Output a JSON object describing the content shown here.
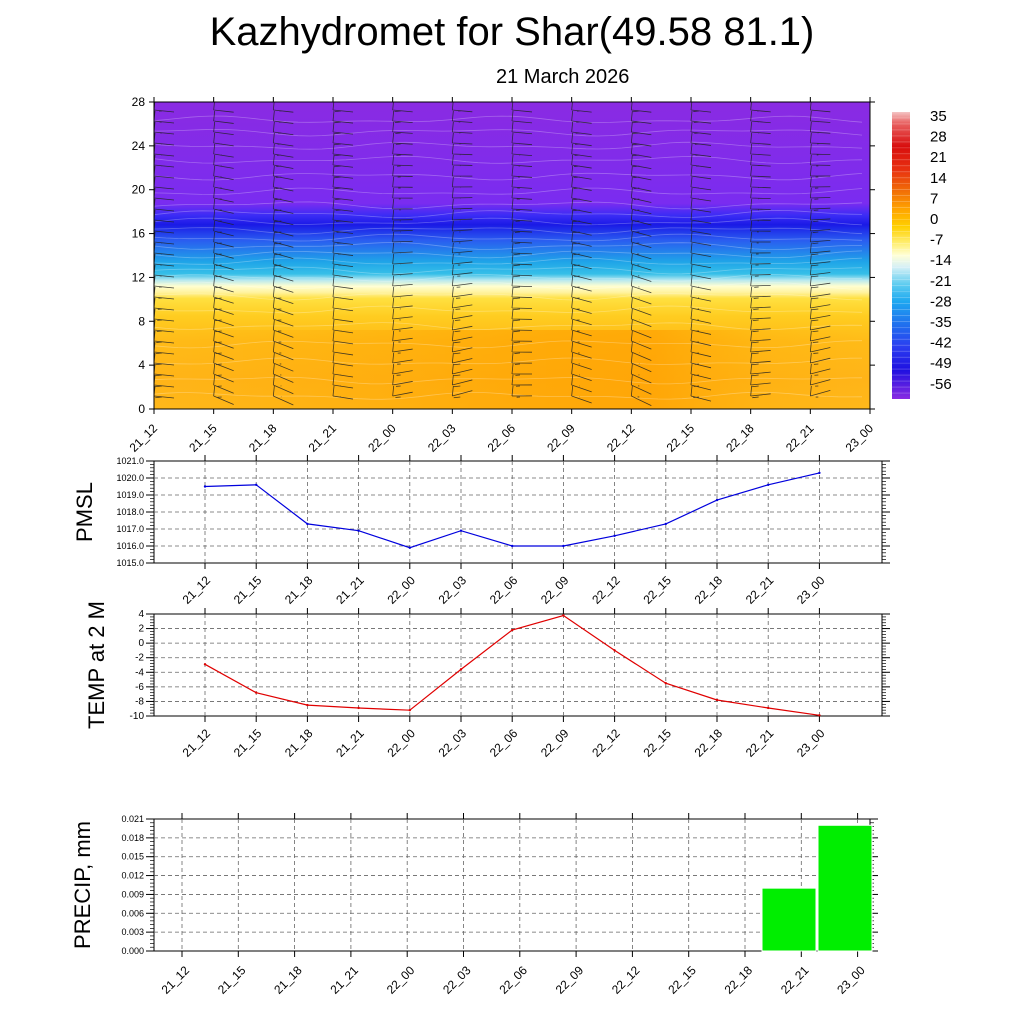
{
  "title": "Kazhydromet for Shar(49.58 81.1)",
  "date": "21 March 2026",
  "time_labels": [
    "21_12",
    "21_15",
    "21_18",
    "21_21",
    "22_00",
    "22_03",
    "22_06",
    "22_09",
    "22_12",
    "22_15",
    "22_18",
    "22_21",
    "23_00"
  ],
  "colors": {
    "pmsl_line": "#0000dd",
    "temp_line": "#e00000",
    "precip_bar": "#00ee00"
  },
  "chart_data": [
    {
      "type": "heatmap",
      "name": "cross-section",
      "y_ticks": [
        0,
        4,
        8,
        12,
        16,
        20,
        24,
        28
      ],
      "ylim": [
        0,
        28
      ],
      "colorbar_labels": [
        "35",
        "28",
        "21",
        "14",
        "7",
        "0",
        "-7",
        "-14",
        "-21",
        "-28",
        "-35",
        "-42",
        "-49",
        "-56"
      ],
      "colorbar_range": [
        -60,
        39
      ]
    },
    {
      "type": "line",
      "name": "pmsl",
      "ylabel": "PMSL",
      "y_ticks": [
        "1015.0",
        "1016.0",
        "1017.0",
        "1018.0",
        "1019.0",
        "1020.0",
        "1021.0"
      ],
      "ylim": [
        1015,
        1021
      ],
      "values": [
        1019.5,
        1019.6,
        1017.3,
        1016.9,
        1015.9,
        1016.9,
        1016.0,
        1016.0,
        1016.6,
        1017.3,
        1018.7,
        1019.6,
        1020.3
      ]
    },
    {
      "type": "line",
      "name": "temp",
      "ylabel": "TEMP at 2 M",
      "y_ticks": [
        "-10",
        "-8",
        "-6",
        "-4",
        "-2",
        "0",
        "2",
        "4"
      ],
      "ylim": [
        -10,
        4
      ],
      "values": [
        -2.9,
        -6.8,
        -8.5,
        -8.9,
        -9.2,
        -3.6,
        1.8,
        3.8,
        -1.0,
        -5.5,
        -7.8,
        -8.9,
        -9.9
      ]
    },
    {
      "type": "bar",
      "name": "precip",
      "ylabel": "PRECIP, mm",
      "y_ticks": [
        "0.000",
        "0.003",
        "0.006",
        "0.009",
        "0.012",
        "0.015",
        "0.018",
        "0.021"
      ],
      "ylim": [
        0,
        0.021
      ],
      "values": [
        0,
        0,
        0,
        0,
        0,
        0,
        0,
        0,
        0,
        0,
        0,
        0.01,
        0.02
      ]
    }
  ]
}
